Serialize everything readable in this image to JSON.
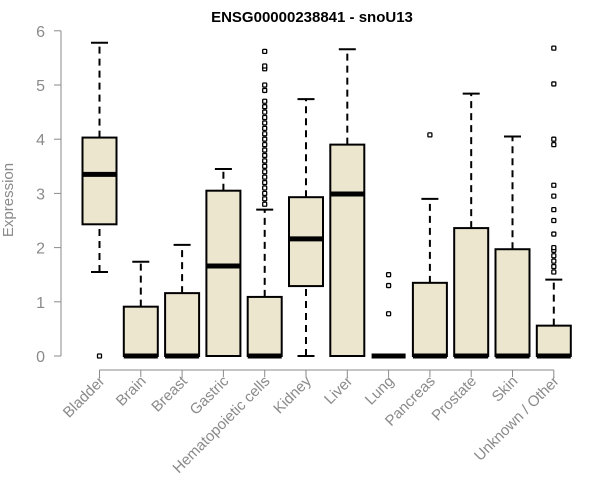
{
  "chart_data": {
    "type": "boxplot",
    "title": "ENSG00000238841 - snoU13",
    "xlabel": "",
    "ylabel": "Expression",
    "ylim": [
      0,
      6
    ],
    "yticks": [
      "0",
      "1",
      "2",
      "3",
      "4",
      "5",
      "6"
    ],
    "grid": false,
    "box_color": "#ede6cf",
    "categories": [
      "Bladder",
      "Brain",
      "Breast",
      "Gastric",
      "Hematopoietic cells",
      "Kidney",
      "Liver",
      "Lung",
      "Pancreas",
      "Prostate",
      "Skin",
      "Unknown / Other"
    ],
    "boxes": [
      {
        "q1": 2.43,
        "median": 3.35,
        "q3": 4.03,
        "whisker_low": 1.55,
        "whisker_high": 5.78,
        "outliers": [
          0.0
        ]
      },
      {
        "q1": 0.0,
        "median": 0.0,
        "q3": 0.91,
        "whisker_low": 0.0,
        "whisker_high": 1.74,
        "outliers": []
      },
      {
        "q1": 0.0,
        "median": 0.0,
        "q3": 1.16,
        "whisker_low": 0.0,
        "whisker_high": 2.05,
        "outliers": []
      },
      {
        "q1": 0.0,
        "median": 1.66,
        "q3": 3.05,
        "whisker_low": 0.0,
        "whisker_high": 3.45,
        "outliers": []
      },
      {
        "q1": 0.0,
        "median": 0.0,
        "q3": 1.09,
        "whisker_low": 0.0,
        "whisker_high": 2.7,
        "outliers": [
          2.8,
          2.9,
          3.0,
          3.1,
          3.2,
          3.3,
          3.4,
          3.5,
          3.6,
          3.7,
          3.8,
          3.9,
          4.0,
          4.1,
          4.2,
          4.3,
          4.4,
          4.5,
          4.6,
          4.7,
          4.9,
          5.0,
          5.3,
          5.35,
          5.62
        ]
      },
      {
        "q1": 1.29,
        "median": 2.16,
        "q3": 2.93,
        "whisker_low": 0.0,
        "whisker_high": 4.74,
        "outliers": []
      },
      {
        "q1": 0.0,
        "median": 2.99,
        "q3": 3.9,
        "whisker_low": 0.0,
        "whisker_high": 5.66,
        "outliers": []
      },
      {
        "q1": 0.0,
        "median": 0.0,
        "q3": 0.0,
        "whisker_low": 0.0,
        "whisker_high": 0.0,
        "outliers": [
          0.78,
          1.3,
          1.5
        ]
      },
      {
        "q1": 0.0,
        "median": 0.0,
        "q3": 1.35,
        "whisker_low": 0.0,
        "whisker_high": 2.9,
        "outliers": [
          4.08
        ]
      },
      {
        "q1": 0.0,
        "median": 0.0,
        "q3": 2.36,
        "whisker_low": 0.0,
        "whisker_high": 4.84,
        "outliers": []
      },
      {
        "q1": 0.0,
        "median": 0.0,
        "q3": 1.97,
        "whisker_low": 0.0,
        "whisker_high": 4.05,
        "outliers": []
      },
      {
        "q1": 0.0,
        "median": 0.0,
        "q3": 0.56,
        "whisker_low": 0.0,
        "whisker_high": 1.41,
        "outliers": [
          1.55,
          1.65,
          1.75,
          1.85,
          1.95,
          2.0,
          2.25,
          2.5,
          2.7,
          2.95,
          3.15,
          3.9,
          4.0,
          5.02,
          5.68
        ]
      }
    ]
  }
}
